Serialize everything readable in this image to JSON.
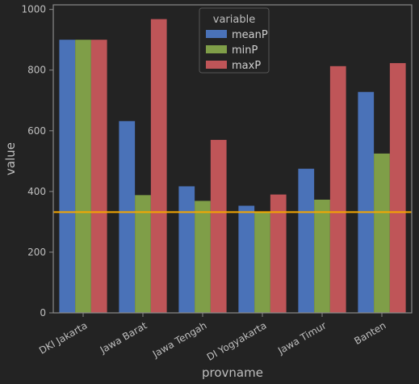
{
  "chart_data": {
    "type": "bar",
    "title": "",
    "xlabel": "provname",
    "ylabel": "value",
    "categories": [
      "DKI Jakarta",
      "Jawa Barat",
      "Jawa Tengah",
      "DI Yogyakarta",
      "Jawa Timur",
      "Banten"
    ],
    "series": [
      {
        "name": "meanP",
        "color": "#4a72b8",
        "values": [
          900,
          632,
          417,
          353,
          475,
          728
        ]
      },
      {
        "name": "minP",
        "color": "#7f9e48",
        "values": [
          900,
          388,
          369,
          332,
          373,
          525
        ]
      },
      {
        "name": "maxP",
        "color": "#bf5558",
        "values": [
          900,
          968,
          570,
          390,
          813,
          823
        ]
      }
    ],
    "ylim": [
      0,
      1015
    ],
    "yticks": [
      0,
      200,
      400,
      600,
      800,
      1000
    ],
    "grid": false,
    "reference_line": {
      "value": 332,
      "color": "#f5a700"
    },
    "legend": {
      "title": "variable",
      "placement": "top-center"
    }
  },
  "colors": {
    "background": "#232323",
    "axes": "#8a8a8a",
    "text": "#bfbfbf"
  }
}
